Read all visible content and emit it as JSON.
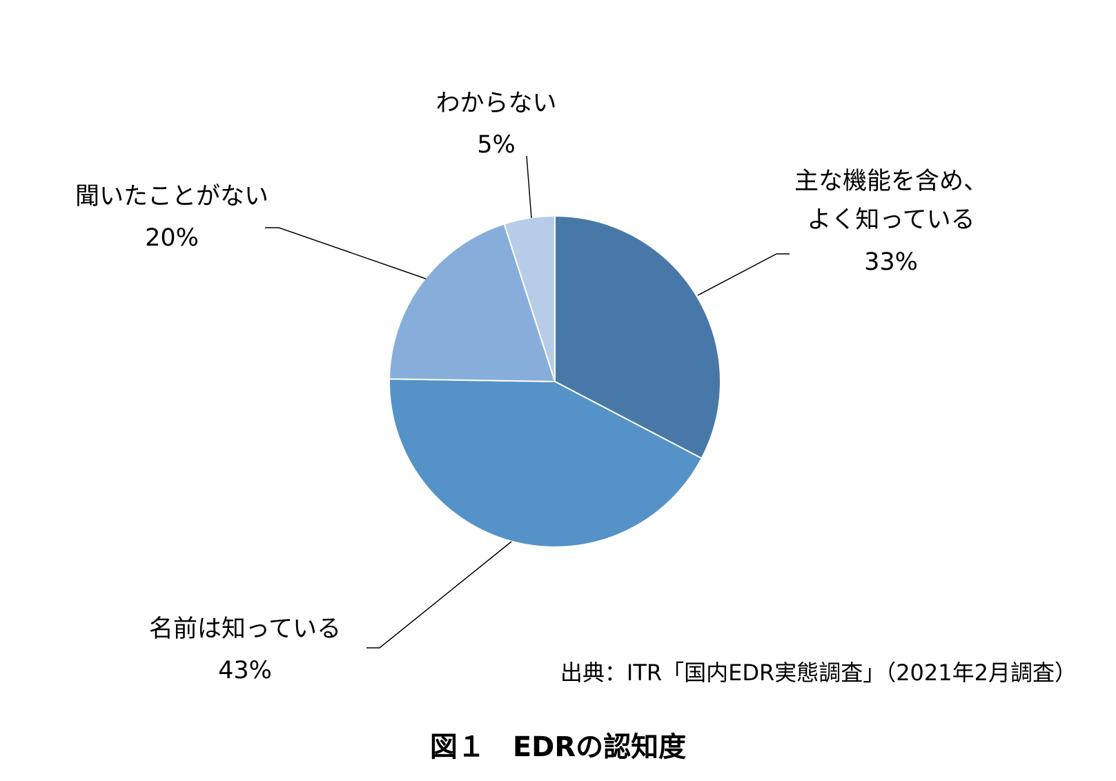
{
  "chart_data": {
    "type": "pie",
    "categories": [
      "主な機能を含め、\nよく知っている",
      "名前は知っている",
      "聞いたことがない",
      "わからない"
    ],
    "values": [
      33,
      43,
      20,
      5
    ],
    "value_labels": [
      "33%",
      "43%",
      "20%",
      "5%"
    ],
    "colors": [
      "#4878a8",
      "#5592c8",
      "#87aedb",
      "#b7cce8"
    ],
    "source": "出典：ITR「国内EDR実態調査」（2021年2月調査）",
    "caption": "図１　EDRの認知度"
  }
}
